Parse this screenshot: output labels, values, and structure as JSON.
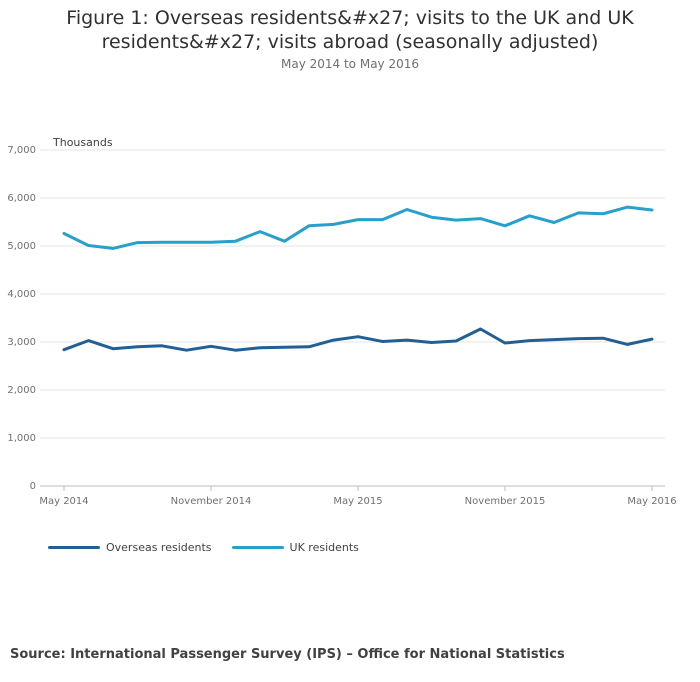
{
  "title": "Figure 1: Overseas residents&#x27; visits to the UK and UK residents&#x27; visits abroad (seasonally adjusted)",
  "subtitle": "May 2014 to May 2016",
  "source": "Source: International Passenger Survey (IPS) – Office for National Statistics",
  "colors": {
    "overseas": "#206095",
    "uk": "#27a0cc",
    "grid": "#e6e6e6",
    "axis": "#bebebe"
  },
  "chart_data": {
    "type": "line",
    "ylabel": "Thousands",
    "ylim": [
      0,
      7000
    ],
    "yticks": [
      0,
      1000,
      2000,
      3000,
      4000,
      5000,
      6000,
      7000
    ],
    "ytick_labels": [
      "0",
      "1,000",
      "2,000",
      "3,000",
      "4,000",
      "5,000",
      "6,000",
      "7,000"
    ],
    "xtick_labels": [
      {
        "index": 0,
        "label": "May 2014"
      },
      {
        "index": 6,
        "label": "November 2014"
      },
      {
        "index": 12,
        "label": "May 2015"
      },
      {
        "index": 18,
        "label": "November 2015"
      },
      {
        "index": 24,
        "label": "May 2016"
      }
    ],
    "x": [
      "May 2014",
      "Jun 2014",
      "Jul 2014",
      "Aug 2014",
      "Sep 2014",
      "Oct 2014",
      "Nov 2014",
      "Dec 2014",
      "Jan 2015",
      "Feb 2015",
      "Mar 2015",
      "Apr 2015",
      "May 2015",
      "Jun 2015",
      "Jul 2015",
      "Aug 2015",
      "Sep 2015",
      "Oct 2015",
      "Nov 2015",
      "Dec 2015",
      "Jan 2016",
      "Feb 2016",
      "Mar 2016",
      "Apr 2016",
      "May 2016"
    ],
    "series": [
      {
        "name": "Overseas residents",
        "key": "overseas",
        "values": [
          2840,
          3030,
          2860,
          2900,
          2920,
          2830,
          2910,
          2830,
          2880,
          2890,
          2900,
          3040,
          3110,
          3010,
          3040,
          2990,
          3020,
          3270,
          2980,
          3030,
          3050,
          3070,
          3080,
          2950,
          3060
        ]
      },
      {
        "name": "UK residents",
        "key": "uk",
        "values": [
          5260,
          5010,
          4950,
          5070,
          5080,
          5080,
          5080,
          5100,
          5300,
          5100,
          5420,
          5450,
          5550,
          5550,
          5760,
          5600,
          5540,
          5570,
          5420,
          5630,
          5490,
          5690,
          5670,
          5810,
          5750
        ]
      }
    ],
    "legend": "bottom-left",
    "grid": true
  }
}
